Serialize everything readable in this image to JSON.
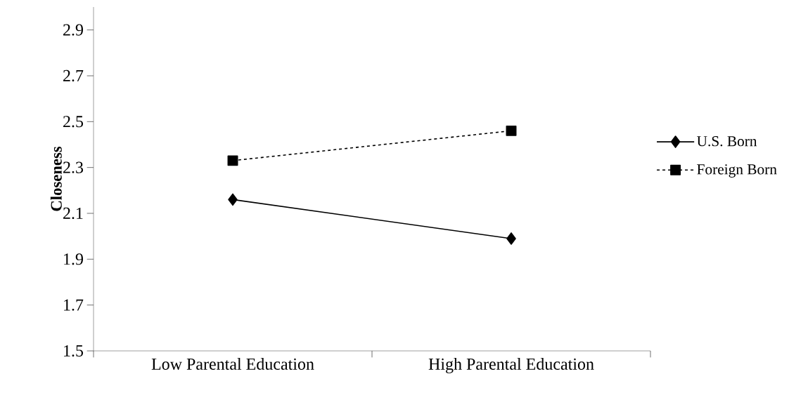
{
  "chart_data": {
    "type": "line",
    "ylabel": "Closeness",
    "categories": [
      "Low Parental Education",
      "High Parental Education"
    ],
    "series": [
      {
        "name": "U.S.  Born",
        "color": "#000000",
        "values": [
          2.16,
          1.99
        ],
        "marker": "diamond",
        "line_style": "solid"
      },
      {
        "name": "Foreign Born",
        "color": "#000000",
        "values": [
          2.33,
          2.46
        ],
        "marker": "square",
        "line_style": "dashed"
      }
    ],
    "ylim": [
      1.5,
      3.0
    ],
    "yticks": [
      1.5,
      1.7,
      1.9,
      2.1,
      2.3,
      2.5,
      2.7,
      2.9
    ],
    "legend": "right"
  }
}
